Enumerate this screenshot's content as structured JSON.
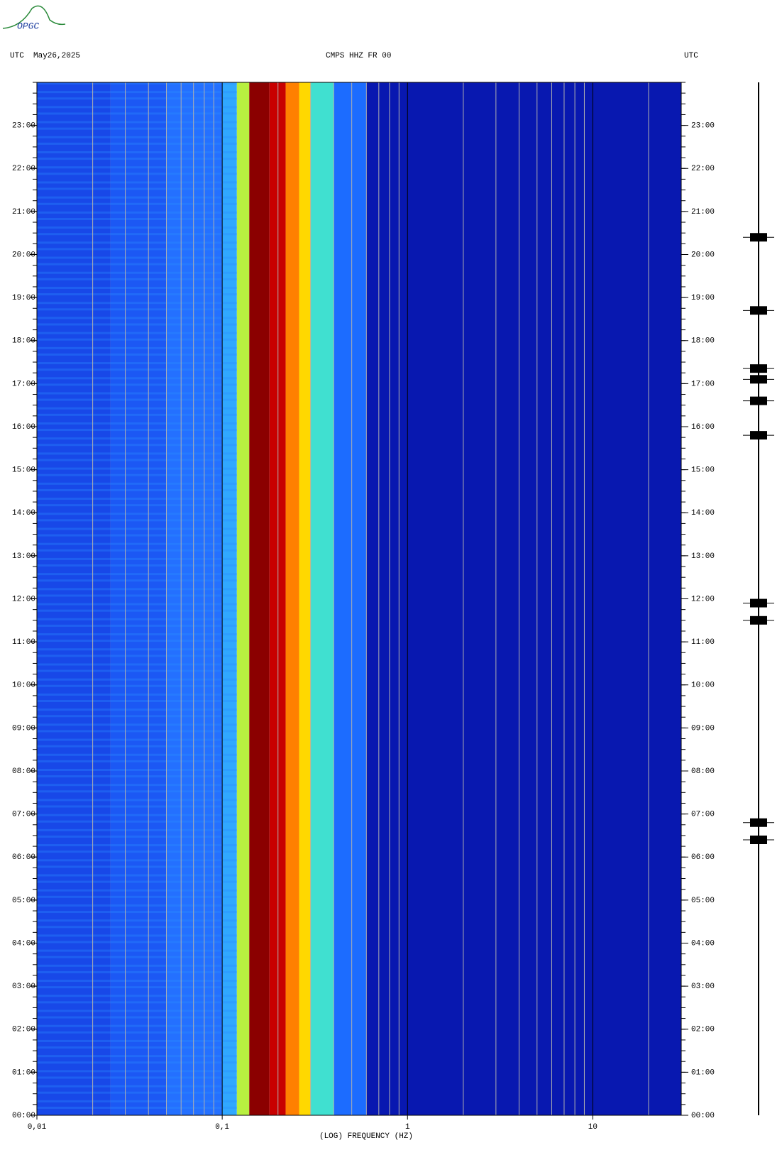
{
  "logo": "OPGC",
  "chart_data": {
    "type": "spectrogram",
    "title": "CMPS HHZ FR 00",
    "left_label": "UTC  May26,2025",
    "right_label": "UTC",
    "xlabel": "(LOG) FREQUENCY (HZ)",
    "xscale": "log",
    "xlim": [
      0.01,
      30
    ],
    "xticks": [
      {
        "value": 0.01,
        "label": "0,01"
      },
      {
        "value": 0.1,
        "label": "0,1"
      },
      1,
      10
    ],
    "ylim": [
      0,
      24
    ],
    "yticks": [
      {
        "value": 0,
        "label": "00:00"
      },
      {
        "value": 1,
        "label": "01:00"
      },
      {
        "value": 2,
        "label": "02:00"
      },
      {
        "value": 3,
        "label": "03:00"
      },
      {
        "value": 4,
        "label": "04:00"
      },
      {
        "value": 5,
        "label": "05:00"
      },
      {
        "value": 6,
        "label": "06:00"
      },
      {
        "value": 7,
        "label": "07:00"
      },
      {
        "value": 8,
        "label": "08:00"
      },
      {
        "value": 9,
        "label": "09:00"
      },
      {
        "value": 10,
        "label": "10:00"
      },
      {
        "value": 11,
        "label": "11:00"
      },
      {
        "value": 12,
        "label": "12:00"
      },
      {
        "value": 13,
        "label": "13:00"
      },
      {
        "value": 14,
        "label": "14:00"
      },
      {
        "value": 15,
        "label": "15:00"
      },
      {
        "value": 16,
        "label": "16:00"
      },
      {
        "value": 17,
        "label": "17:00"
      },
      {
        "value": 18,
        "label": "18:00"
      },
      {
        "value": 19,
        "label": "19:00"
      },
      {
        "value": 20,
        "label": "20:00"
      },
      {
        "value": 21,
        "label": "21:00"
      },
      {
        "value": 22,
        "label": "22:00"
      },
      {
        "value": 23,
        "label": "23:00"
      }
    ],
    "minor_grid": true,
    "bands": [
      0.01,
      0.025,
      0.05,
      0.1,
      0.12,
      0.14,
      0.18,
      0.22,
      0.26,
      0.3,
      0.4,
      0.6,
      30
    ],
    "band_colors": [
      "#1848e8",
      "#1c58f4",
      "#2470ff",
      "#30a8ff",
      "#b8f040",
      "#8b0000",
      "#c80000",
      "#ff8000",
      "#ffd800",
      "#40e0d0",
      "#1c6cff",
      "#0818b0"
    ],
    "events": [
      20.4,
      18.7,
      17.35,
      17.1,
      16.6,
      15.8,
      11.5,
      11.9,
      6.8,
      6.4
    ]
  }
}
